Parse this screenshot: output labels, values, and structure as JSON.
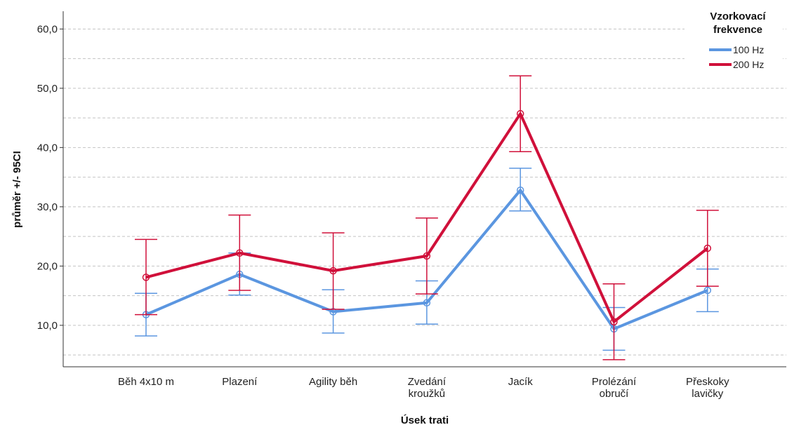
{
  "chart_data": {
    "type": "line",
    "xlabel": "Úsek trati",
    "ylabel": "průměr +/- 95CI",
    "categories": [
      [
        "Běh 4x10 m"
      ],
      [
        "Plazení"
      ],
      [
        "Agility běh"
      ],
      [
        "Zvedání",
        "kroužků"
      ],
      [
        "Jacík"
      ],
      [
        "Prolézání",
        "obručí"
      ],
      [
        "Přeskoky",
        "lavičky"
      ]
    ],
    "ylim": [
      3,
      63
    ],
    "yticks": [
      10,
      20,
      30,
      40,
      50,
      60
    ],
    "ytick_labels": [
      "10,0",
      "20,0",
      "30,0",
      "40,0",
      "50,0",
      "60,0"
    ],
    "grid": true,
    "legend": {
      "title_lines": [
        "Vzorkovací",
        "frekvence"
      ],
      "position": "top-right"
    },
    "series": [
      {
        "name": "100 Hz",
        "color": "#5b96e0",
        "values": [
          11.8,
          18.6,
          12.3,
          13.8,
          32.8,
          9.4,
          15.9
        ],
        "ci_low": [
          8.2,
          15.1,
          8.7,
          10.2,
          29.3,
          5.8,
          12.3
        ],
        "ci_high": [
          15.4,
          22.2,
          16.0,
          17.5,
          36.5,
          13.0,
          19.5
        ]
      },
      {
        "name": "200 Hz",
        "color": "#d0103a",
        "values": [
          18.1,
          22.2,
          19.2,
          21.7,
          45.7,
          10.6,
          23.0
        ],
        "ci_low": [
          11.8,
          15.9,
          12.7,
          15.3,
          39.3,
          4.2,
          16.6
        ],
        "ci_high": [
          24.5,
          28.6,
          25.6,
          28.1,
          52.1,
          17.0,
          29.4
        ]
      }
    ]
  }
}
